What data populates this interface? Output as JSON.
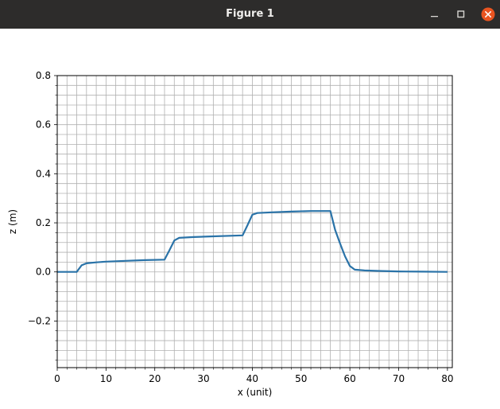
{
  "window": {
    "title": "Figure 1",
    "icons": {
      "minimize": "minimize-icon",
      "maximize": "maximize-icon",
      "close": "close-icon"
    },
    "close_color": "#e95420"
  },
  "chart_data": {
    "type": "line",
    "xlabel": "x (unit)",
    "ylabel": "z (m)",
    "xlim": [
      0,
      81
    ],
    "ylim": [
      -0.39,
      0.8
    ],
    "xticks": [
      0,
      10,
      20,
      30,
      40,
      50,
      60,
      70,
      80
    ],
    "xtick_labels": [
      "0",
      "10",
      "20",
      "30",
      "40",
      "50",
      "60",
      "70",
      "80"
    ],
    "yticks": [
      -0.2,
      0.0,
      0.2,
      0.4,
      0.6,
      0.8
    ],
    "ytick_labels": [
      "−0.2",
      "0.0",
      "0.2",
      "0.4",
      "0.6",
      "0.8"
    ],
    "grid": true,
    "grid_minor": true,
    "line_color": "#2a73a8",
    "series": [
      {
        "x": [
          0,
          4,
          5,
          6,
          8,
          10,
          14,
          18,
          22,
          23,
          24,
          25,
          28,
          32,
          38,
          39,
          40,
          41,
          44,
          48,
          52,
          56,
          57,
          58,
          59,
          60,
          61,
          63,
          66,
          70,
          75,
          80
        ],
        "y": [
          0.0,
          0.0,
          0.027,
          0.035,
          0.039,
          0.042,
          0.045,
          0.048,
          0.05,
          0.088,
          0.128,
          0.139,
          0.142,
          0.145,
          0.149,
          0.19,
          0.233,
          0.24,
          0.243,
          0.246,
          0.248,
          0.248,
          0.17,
          0.115,
          0.064,
          0.024,
          0.009,
          0.006,
          0.004,
          0.002,
          0.001,
          0.0
        ]
      }
    ]
  }
}
